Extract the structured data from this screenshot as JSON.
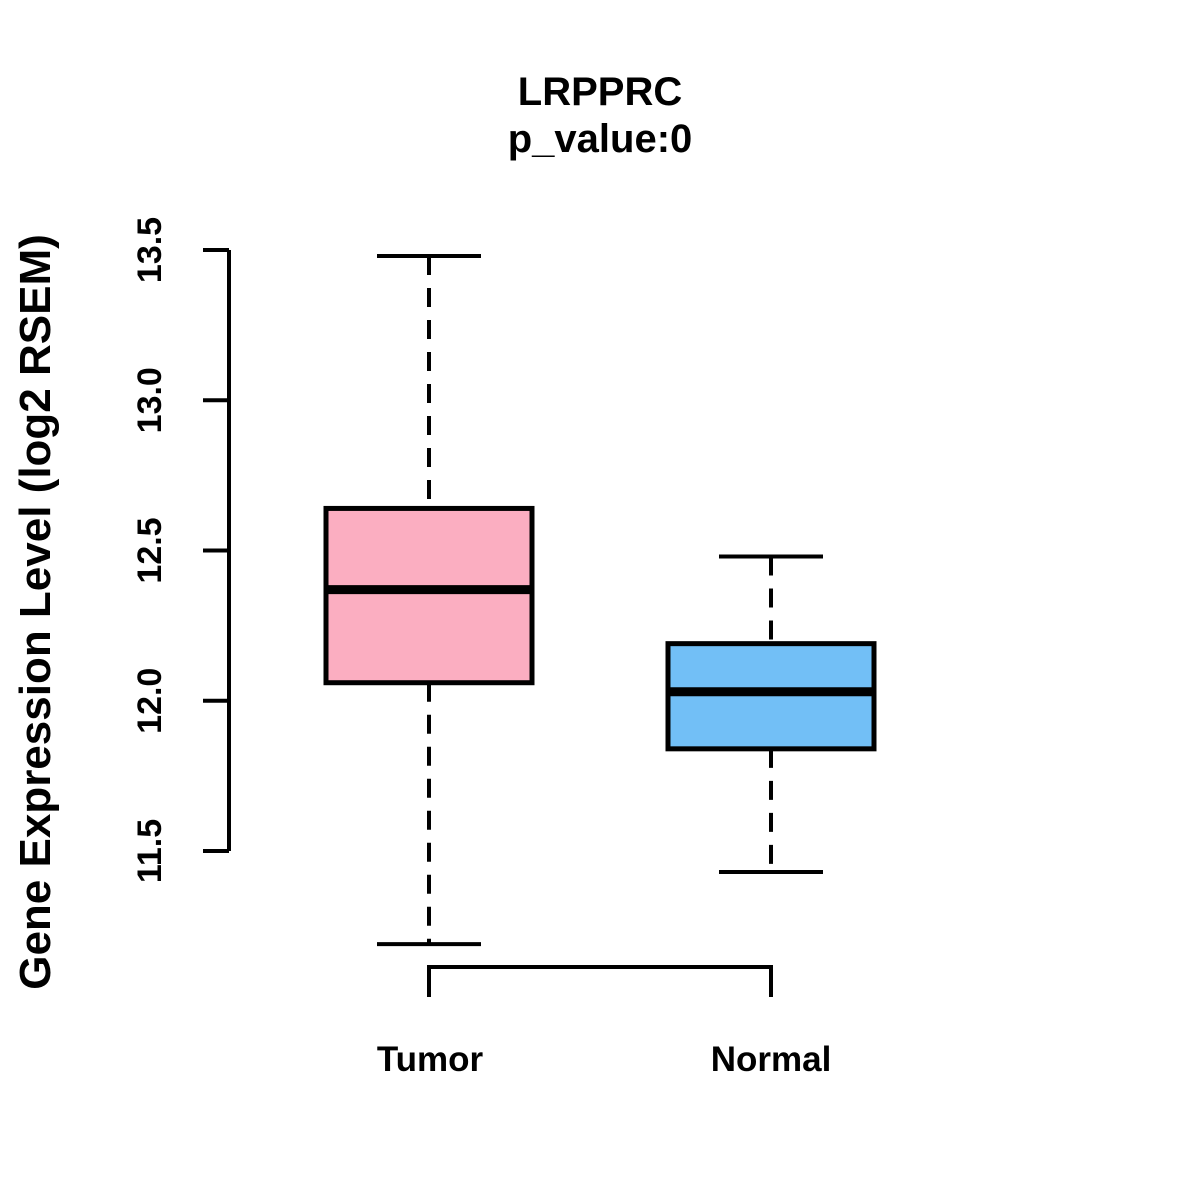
{
  "figure": {
    "title": "LRPPRC",
    "subtitle": "p_value:0",
    "ylabel": "Gene Expression Level (log2 RSEM)"
  },
  "chart_data": {
    "type": "boxplot",
    "title": "LRPPRC",
    "subtitle": "p_value:0",
    "xlabel": "",
    "ylabel": "Gene Expression Level (log2 RSEM)",
    "categories": [
      "Tumor",
      "Normal"
    ],
    "series": [
      {
        "name": "Tumor",
        "fill_color": "#FBAEC1",
        "whisker_low": 11.19,
        "q1": 12.06,
        "median": 12.37,
        "q3": 12.64,
        "whisker_high": 13.48
      },
      {
        "name": "Normal",
        "fill_color": "#72BFF6",
        "whisker_low": 11.43,
        "q1": 11.84,
        "median": 12.03,
        "q3": 12.19,
        "whisker_high": 12.48
      }
    ],
    "yticks": [
      11.5,
      12.0,
      12.5,
      13.0,
      13.5
    ],
    "ytick_labels": [
      "11.5",
      "12.0",
      "12.5",
      "13.0",
      "13.5"
    ],
    "ylim": [
      11.5,
      13.5
    ],
    "grid": false,
    "legend": false,
    "line_color": "#000000",
    "background_color": "#FFFFFF",
    "annotations": {
      "comparison_bracket_between": [
        "Tumor",
        "Normal"
      ]
    }
  }
}
